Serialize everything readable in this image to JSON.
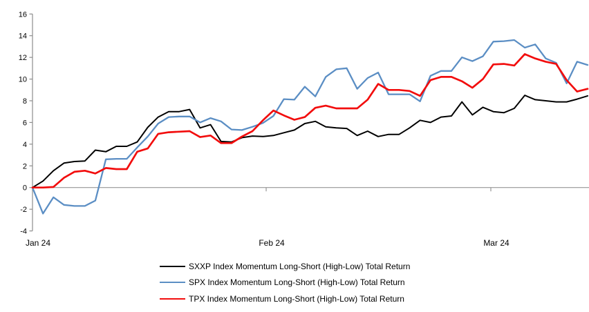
{
  "chart_data": {
    "type": "line",
    "title": "",
    "xlabel": "",
    "ylabel": "",
    "y_ticks": [
      16,
      14,
      12,
      10,
      8,
      6,
      4,
      2,
      0,
      -2,
      -4
    ],
    "ylim": [
      -4,
      16
    ],
    "grid": "zero-line-only",
    "legend_position": "bottom",
    "axis_color": "#8c8c8c",
    "zero_line_color": "#969696",
    "x_ticks": [
      {
        "label": "Jan 24",
        "index": 0
      },
      {
        "label": "Feb 24",
        "index": 22.31
      },
      {
        "label": "Mar 24",
        "index": 43.76
      }
    ],
    "series": [
      {
        "name": "SXXP Index Momentum Long-Short (High-Low) Total Return",
        "color": "#000000",
        "values": [
          0,
          0.6,
          1.55,
          2.25,
          2.4,
          2.45,
          3.45,
          3.3,
          3.8,
          3.8,
          4.2,
          5.55,
          6.5,
          7.0,
          7.0,
          7.2,
          5.5,
          5.8,
          4.25,
          4.2,
          4.6,
          4.75,
          4.7,
          4.8,
          5.05,
          5.3,
          5.9,
          6.1,
          5.6,
          5.5,
          5.45,
          4.8,
          5.2,
          4.7,
          4.9,
          4.9,
          5.5,
          6.2,
          6.0,
          6.5,
          6.6,
          7.9,
          6.7,
          7.4,
          7.0,
          6.9,
          7.3,
          8.5,
          8.1,
          8.0,
          7.9,
          7.9,
          8.15,
          8.45
        ]
      },
      {
        "name": "SPX Index Momentum Long-Short (High-Low) Total Return",
        "color": "#5B8EC4",
        "values": [
          0,
          -2.4,
          -0.9,
          -1.6,
          -1.7,
          -1.7,
          -1.2,
          2.6,
          2.65,
          2.65,
          3.7,
          4.7,
          5.9,
          6.5,
          6.55,
          6.55,
          6.0,
          6.4,
          6.1,
          5.35,
          5.3,
          5.6,
          5.95,
          6.6,
          8.15,
          8.1,
          9.3,
          8.4,
          10.2,
          10.9,
          11.0,
          9.1,
          10.1,
          10.6,
          8.6,
          8.6,
          8.6,
          7.95,
          10.3,
          10.75,
          10.75,
          12.0,
          11.65,
          12.1,
          13.45,
          13.5,
          13.6,
          12.9,
          13.2,
          11.9,
          11.5,
          9.6,
          11.6,
          11.3
        ]
      },
      {
        "name": "TPX Index Momentum Long-Short (High-Low) Total Return",
        "color": "#F20D0D",
        "values": [
          0,
          0,
          0.05,
          0.9,
          1.45,
          1.55,
          1.3,
          1.8,
          1.7,
          1.7,
          3.3,
          3.6,
          4.95,
          5.1,
          5.15,
          5.2,
          4.65,
          4.8,
          4.1,
          4.1,
          4.7,
          5.2,
          6.2,
          7.1,
          6.65,
          6.25,
          6.5,
          7.35,
          7.55,
          7.3,
          7.3,
          7.3,
          8.1,
          9.55,
          9.0,
          9.0,
          8.9,
          8.45,
          9.9,
          10.2,
          10.2,
          9.8,
          9.2,
          10.0,
          11.35,
          11.4,
          11.25,
          12.3,
          11.9,
          11.6,
          11.4,
          9.9,
          8.85,
          9.1
        ]
      }
    ]
  }
}
